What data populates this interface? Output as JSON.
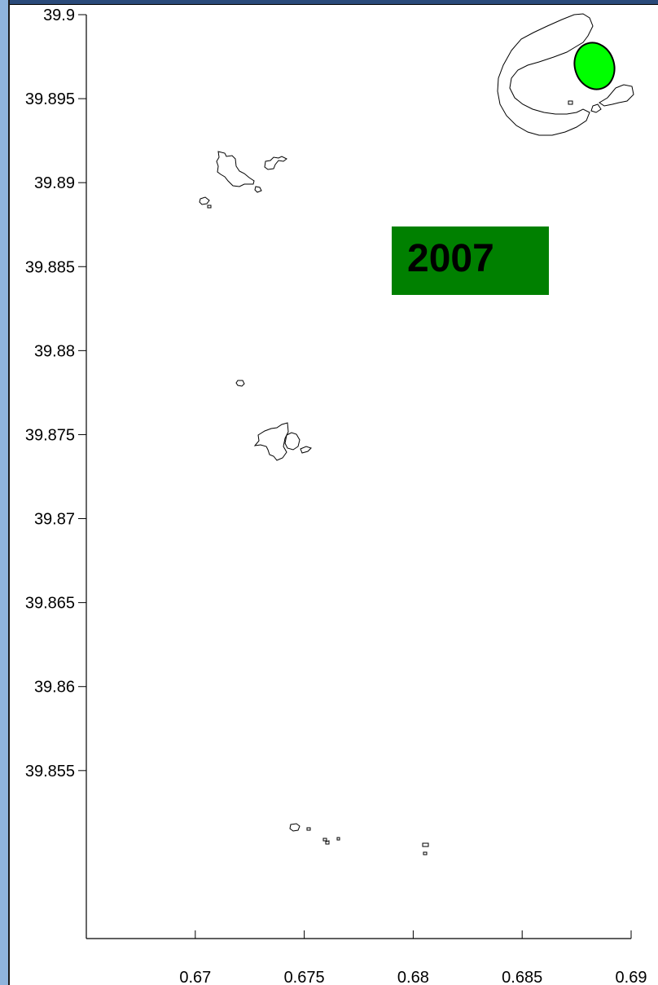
{
  "chart_data": {
    "type": "map",
    "title": "",
    "xlabel": "",
    "ylabel": "",
    "xlim": [
      0.665,
      0.69
    ],
    "ylim": [
      39.845,
      39.9
    ],
    "x_ticks": [
      "0.67",
      "0.675",
      "0.68",
      "0.685",
      "0.69"
    ],
    "y_ticks": [
      "39.9",
      "39.895",
      "39.89",
      "39.885",
      "39.88",
      "39.875",
      "39.87",
      "39.865",
      "39.86",
      "39.855"
    ],
    "annotation": "2007",
    "colors": {
      "annotation_box": "#008000",
      "inset_marker": "#00ff00",
      "outline": "#000000",
      "left_strip": "#8fb4dc"
    },
    "features": [
      {
        "name": "island-cluster-north",
        "approx_lon": 0.6695,
        "approx_lat": 39.891
      },
      {
        "name": "islet-small",
        "approx_lon": 0.6685,
        "approx_lat": 39.8785
      },
      {
        "name": "island-cluster-central",
        "approx_lon": 0.6715,
        "approx_lat": 39.8748
      },
      {
        "name": "islets-south",
        "approx_lon": 0.675,
        "approx_lat": 39.8505
      }
    ],
    "inset": {
      "type": "locator-map",
      "highlight": "ellipse"
    }
  }
}
